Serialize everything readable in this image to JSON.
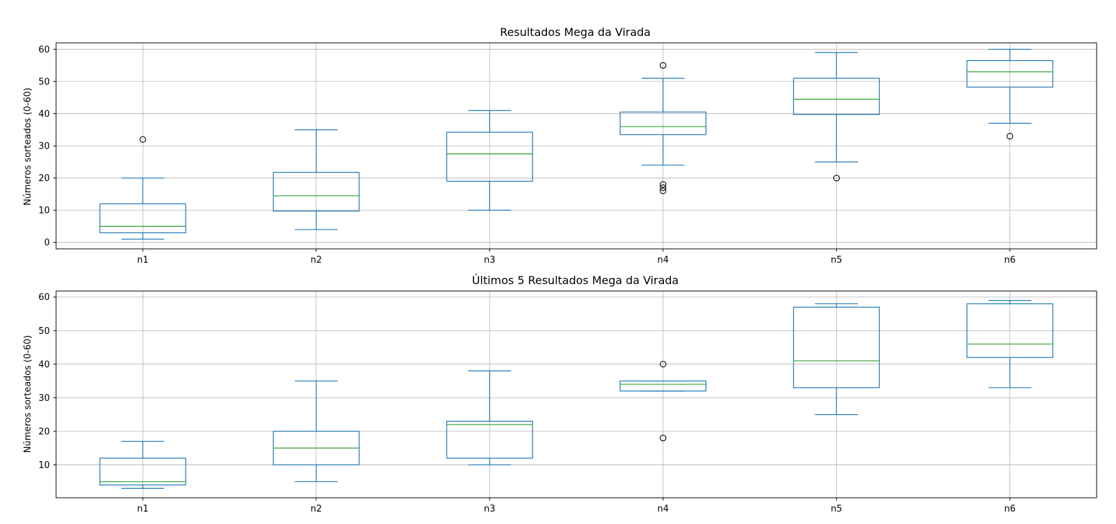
{
  "chart_data": [
    {
      "type": "box",
      "title": "Resultados Mega da Virada",
      "xlabel": "",
      "ylabel": "Números sorteados (0-60)",
      "ylim": [
        -2,
        62
      ],
      "yticks": [
        0,
        10,
        20,
        30,
        40,
        50,
        60
      ],
      "grid": true,
      "categories": [
        "n1",
        "n2",
        "n3",
        "n4",
        "n5",
        "n6"
      ],
      "boxes": [
        {
          "whisker_low": 1,
          "q1": 3,
          "median": 5,
          "q3": 12,
          "whisker_high": 20,
          "outliers": [
            32
          ]
        },
        {
          "whisker_low": 4,
          "q1": 9.75,
          "median": 14.5,
          "q3": 21.75,
          "whisker_high": 35,
          "outliers": []
        },
        {
          "whisker_low": 10,
          "q1": 19,
          "median": 27.5,
          "q3": 34.25,
          "whisker_high": 41,
          "outliers": []
        },
        {
          "whisker_low": 24,
          "q1": 33.5,
          "median": 36,
          "q3": 40.5,
          "whisker_high": 51,
          "outliers": [
            55,
            18,
            17,
            16
          ]
        },
        {
          "whisker_low": 25,
          "q1": 39.75,
          "median": 44.5,
          "q3": 51,
          "whisker_high": 59,
          "outliers": [
            20
          ]
        },
        {
          "whisker_low": 37,
          "q1": 48.25,
          "median": 53,
          "q3": 56.5,
          "whisker_high": 60,
          "outliers": [
            33
          ]
        }
      ],
      "colors": {
        "box": "#1f77b4",
        "median": "#2ca02c",
        "grid": "#b0b0b0"
      }
    },
    {
      "type": "box",
      "title": "Últimos 5 Resultados Mega da Virada",
      "xlabel": "",
      "ylabel": "Números sorteados (0-60)",
      "ylim": [
        0.2,
        61.8
      ],
      "yticks": [
        10,
        20,
        30,
        40,
        50,
        60
      ],
      "grid": true,
      "categories": [
        "n1",
        "n2",
        "n3",
        "n4",
        "n5",
        "n6"
      ],
      "boxes": [
        {
          "whisker_low": 3,
          "q1": 4,
          "median": 5,
          "q3": 12,
          "whisker_high": 17,
          "outliers": []
        },
        {
          "whisker_low": 5,
          "q1": 10,
          "median": 15,
          "q3": 20,
          "whisker_high": 35,
          "outliers": []
        },
        {
          "whisker_low": 10,
          "q1": 12,
          "median": 22,
          "q3": 23,
          "whisker_high": 38,
          "outliers": []
        },
        {
          "whisker_low": 32,
          "q1": 32,
          "median": 34,
          "q3": 35,
          "whisker_high": 35,
          "outliers": [
            40,
            18
          ]
        },
        {
          "whisker_low": 25,
          "q1": 33,
          "median": 41,
          "q3": 57,
          "whisker_high": 58,
          "outliers": []
        },
        {
          "whisker_low": 33,
          "q1": 42,
          "median": 46,
          "q3": 58,
          "whisker_high": 59,
          "outliers": []
        }
      ],
      "colors": {
        "box": "#1f77b4",
        "median": "#2ca02c",
        "grid": "#b0b0b0"
      }
    }
  ]
}
